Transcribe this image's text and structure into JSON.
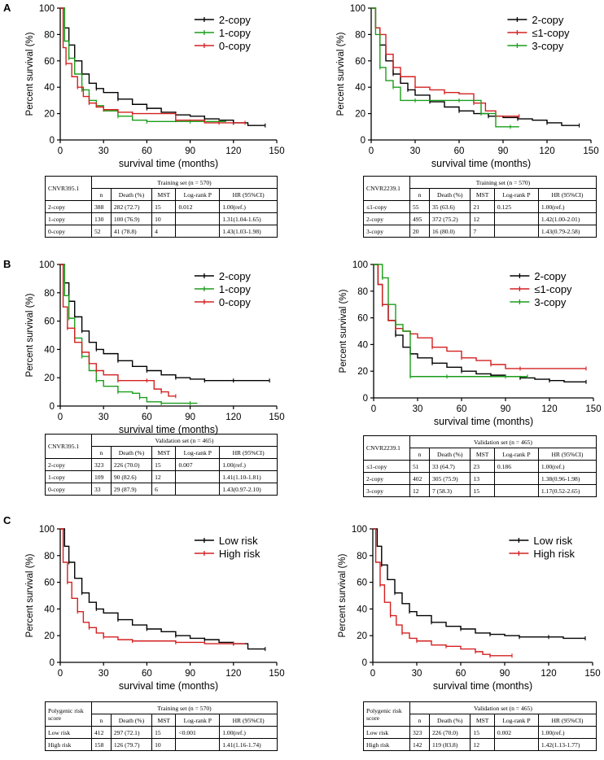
{
  "panel_letters": [
    "A",
    "B",
    "C"
  ],
  "colors": {
    "black": "#000000",
    "green": "#1a9e1a",
    "red": "#d42020"
  },
  "chart_data": [
    {
      "id": "A-left",
      "type": "line",
      "chart_kind": "kaplan-meier",
      "xlabel": "survival time (months)",
      "ylabel": "Percent survival (%)",
      "xlim": [
        0,
        150
      ],
      "ylim": [
        0,
        100
      ],
      "xticks": [
        "0",
        "30",
        "60",
        "90",
        "120",
        "150"
      ],
      "yticks": [
        "0",
        "20",
        "40",
        "60",
        "80",
        "100"
      ],
      "legend": "top-right",
      "series": [
        {
          "name": "2-copy",
          "color": "#000000",
          "x": [
            0,
            3,
            6,
            10,
            15,
            20,
            25,
            30,
            40,
            50,
            60,
            70,
            80,
            90,
            100,
            110,
            120,
            130,
            142
          ],
          "y": [
            100,
            85,
            72,
            60,
            50,
            43,
            39,
            36,
            31,
            27,
            24,
            21,
            19,
            18,
            16,
            15,
            13,
            11,
            11
          ]
        },
        {
          "name": "1-copy",
          "color": "#1a9e1a",
          "x": [
            0,
            3,
            6,
            10,
            15,
            20,
            25,
            30,
            40,
            50,
            60,
            75,
            90,
            100,
            110,
            115
          ],
          "y": [
            100,
            75,
            62,
            50,
            38,
            30,
            26,
            22,
            18,
            15,
            14,
            14,
            14,
            14,
            14,
            14
          ]
        },
        {
          "name": "0-copy",
          "color": "#d42020",
          "x": [
            0,
            2,
            4,
            8,
            12,
            16,
            20,
            25,
            30,
            40,
            50,
            60,
            80,
            100,
            110,
            120,
            128
          ],
          "y": [
            100,
            70,
            58,
            48,
            40,
            33,
            28,
            25,
            23,
            21,
            20,
            20,
            15,
            13,
            13,
            13,
            13
          ]
        }
      ]
    },
    {
      "id": "A-right",
      "type": "line",
      "chart_kind": "kaplan-meier",
      "xlabel": "survival time (months)",
      "ylabel": "Percent survival (%)",
      "xlim": [
        0,
        150
      ],
      "ylim": [
        0,
        100
      ],
      "xticks": [
        "0",
        "30",
        "60",
        "90",
        "120",
        "150"
      ],
      "yticks": [
        "0",
        "20",
        "40",
        "60",
        "80",
        "100"
      ],
      "legend": "top-right",
      "series": [
        {
          "name": "2-copy",
          "color": "#000000",
          "x": [
            0,
            3,
            6,
            10,
            15,
            20,
            25,
            30,
            40,
            50,
            60,
            70,
            80,
            90,
            100,
            110,
            120,
            130,
            142
          ],
          "y": [
            100,
            85,
            72,
            60,
            50,
            43,
            38,
            34,
            29,
            25,
            22,
            20,
            18,
            17,
            16,
            15,
            13,
            11,
            11
          ]
        },
        {
          "name": "≤1-copy",
          "color": "#d42020",
          "x": [
            0,
            3,
            6,
            10,
            15,
            20,
            30,
            40,
            50,
            60,
            70,
            78,
            85,
            95,
            101
          ],
          "y": [
            100,
            85,
            80,
            65,
            55,
            48,
            40,
            38,
            36,
            35,
            28,
            22,
            18,
            18,
            18
          ]
        },
        {
          "name": "3-copy",
          "color": "#1a9e1a",
          "x": [
            0,
            3,
            6,
            10,
            15,
            20,
            30,
            45,
            60,
            65,
            75,
            85,
            95,
            101
          ],
          "y": [
            100,
            80,
            55,
            45,
            40,
            30,
            30,
            30,
            30,
            30,
            20,
            10,
            10,
            10
          ]
        }
      ]
    },
    {
      "id": "B-left",
      "type": "line",
      "chart_kind": "kaplan-meier",
      "xlabel": "survival time (months)",
      "ylabel": "Percent survival (%)",
      "xlim": [
        0,
        150
      ],
      "ylim": [
        0,
        100
      ],
      "xticks": [
        "0",
        "30",
        "60",
        "90",
        "120",
        "150"
      ],
      "yticks": [
        "0",
        "20",
        "40",
        "60",
        "80",
        "100"
      ],
      "legend": "top-right",
      "series": [
        {
          "name": "2-copy",
          "color": "#000000",
          "x": [
            0,
            3,
            6,
            10,
            15,
            20,
            25,
            30,
            40,
            50,
            60,
            70,
            80,
            90,
            100,
            110,
            120,
            130,
            145
          ],
          "y": [
            100,
            87,
            74,
            63,
            53,
            45,
            40,
            37,
            32,
            28,
            25,
            22,
            20,
            19,
            18,
            18,
            18,
            18,
            18
          ]
        },
        {
          "name": "1-copy",
          "color": "#1a9e1a",
          "x": [
            0,
            3,
            6,
            10,
            15,
            20,
            25,
            30,
            40,
            50,
            55,
            60,
            70,
            80,
            90,
            95
          ],
          "y": [
            100,
            78,
            62,
            48,
            35,
            25,
            18,
            14,
            10,
            9,
            6,
            3,
            2,
            2,
            2,
            2
          ]
        },
        {
          "name": "0-copy",
          "color": "#d42020",
          "x": [
            0,
            2,
            5,
            10,
            15,
            20,
            25,
            30,
            40,
            50,
            60,
            65,
            70,
            75,
            80
          ],
          "y": [
            100,
            70,
            55,
            45,
            38,
            30,
            25,
            22,
            18,
            18,
            18,
            12,
            10,
            7,
            7
          ]
        }
      ]
    },
    {
      "id": "B-right",
      "type": "line",
      "chart_kind": "kaplan-meier",
      "xlabel": "survival time (months)",
      "ylabel": "Percent survival (%)",
      "xlim": [
        0,
        150
      ],
      "ylim": [
        0,
        100
      ],
      "xticks": [
        "0",
        "30",
        "60",
        "90",
        "120",
        "150"
      ],
      "yticks": [
        "0",
        "20",
        "40",
        "60",
        "80",
        "100"
      ],
      "legend": "top-right",
      "series": [
        {
          "name": "2-copy",
          "color": "#000000",
          "x": [
            0,
            3,
            6,
            10,
            15,
            20,
            25,
            30,
            40,
            50,
            60,
            70,
            80,
            90,
            100,
            110,
            120,
            130,
            145
          ],
          "y": [
            100,
            85,
            70,
            58,
            47,
            38,
            33,
            30,
            26,
            23,
            20,
            18,
            17,
            16,
            15,
            14,
            13,
            12,
            12
          ]
        },
        {
          "name": "≤1-copy",
          "color": "#d42020",
          "x": [
            0,
            3,
            6,
            10,
            15,
            20,
            25,
            30,
            40,
            50,
            60,
            70,
            80,
            90,
            100,
            120,
            145
          ],
          "y": [
            100,
            85,
            70,
            58,
            52,
            50,
            48,
            45,
            38,
            35,
            30,
            28,
            25,
            22,
            22,
            22,
            22
          ]
        },
        {
          "name": "3-copy",
          "color": "#1a9e1a",
          "x": [
            0,
            3,
            6,
            10,
            15,
            20,
            25,
            30,
            50,
            70,
            90,
            100,
            105
          ],
          "y": [
            100,
            100,
            90,
            70,
            55,
            50,
            16,
            16,
            16,
            16,
            16,
            16,
            16
          ]
        }
      ]
    },
    {
      "id": "C-left",
      "type": "line",
      "chart_kind": "kaplan-meier",
      "xlabel": "survival time (months)",
      "ylabel": "Percent survival (%)",
      "xlim": [
        0,
        150
      ],
      "ylim": [
        0,
        100
      ],
      "xticks": [
        "0",
        "30",
        "60",
        "90",
        "120",
        "150"
      ],
      "yticks": [
        "0",
        "20",
        "40",
        "60",
        "80",
        "100"
      ],
      "legend": "top-right",
      "series": [
        {
          "name": "Low risk",
          "color": "#000000",
          "x": [
            0,
            3,
            6,
            10,
            15,
            20,
            25,
            30,
            40,
            50,
            60,
            70,
            80,
            90,
            100,
            110,
            120,
            130,
            142
          ],
          "y": [
            100,
            87,
            75,
            63,
            52,
            45,
            40,
            37,
            32,
            28,
            25,
            23,
            20,
            18,
            17,
            15,
            14,
            10,
            10
          ]
        },
        {
          "name": "High risk",
          "color": "#d42020",
          "x": [
            0,
            2,
            5,
            8,
            12,
            16,
            20,
            25,
            30,
            40,
            50,
            60,
            80,
            100,
            120,
            128
          ],
          "y": [
            100,
            75,
            60,
            48,
            38,
            30,
            26,
            22,
            19,
            17,
            16,
            16,
            15,
            14,
            14,
            14
          ]
        }
      ]
    },
    {
      "id": "C-right",
      "type": "line",
      "chart_kind": "kaplan-meier",
      "xlabel": "survival time (months)",
      "ylabel": "Percent survival (%)",
      "xlim": [
        0,
        150
      ],
      "ylim": [
        0,
        100
      ],
      "xticks": [
        "0",
        "30",
        "60",
        "90",
        "120",
        "150"
      ],
      "yticks": [
        "0",
        "20",
        "40",
        "60",
        "80",
        "100"
      ],
      "legend": "top-right",
      "series": [
        {
          "name": "Low risk",
          "color": "#000000",
          "x": [
            0,
            3,
            6,
            10,
            15,
            20,
            25,
            30,
            40,
            50,
            60,
            70,
            80,
            90,
            100,
            110,
            120,
            130,
            145
          ],
          "y": [
            100,
            87,
            73,
            62,
            52,
            44,
            38,
            35,
            30,
            27,
            25,
            22,
            21,
            20,
            19,
            19,
            19,
            18,
            18
          ]
        },
        {
          "name": "High risk",
          "color": "#d42020",
          "x": [
            0,
            2,
            5,
            8,
            12,
            16,
            20,
            25,
            30,
            40,
            50,
            60,
            70,
            75,
            80,
            90,
            95
          ],
          "y": [
            100,
            75,
            58,
            45,
            35,
            28,
            22,
            18,
            16,
            13,
            12,
            10,
            8,
            6,
            5,
            5,
            5
          ]
        }
      ]
    }
  ],
  "tables": [
    {
      "id": "A-left",
      "rowname": "CNVR395.1",
      "set_title": "Training set (n = 570)",
      "cols": [
        "n",
        "Death (%)",
        "MST",
        "Log-rank P",
        "HR (95%CI)"
      ],
      "rows": [
        [
          "2-copy",
          "388",
          "282 (72.7)",
          "15",
          "0.012",
          "1.00(ref.)"
        ],
        [
          "1-copy",
          "130",
          "100 (76.9)",
          "10",
          "",
          "1.31(1.04-1.65)"
        ],
        [
          "0-copy",
          "52",
          "41 (78.8)",
          "4",
          "",
          "1.43(1.03-1.98)"
        ]
      ]
    },
    {
      "id": "A-right",
      "rowname": "CNVR2239.1",
      "set_title": "Training set (n = 570)",
      "cols": [
        "n",
        "Death (%)",
        "MST",
        "Log-rank P",
        "HR (95%CI)"
      ],
      "rows": [
        [
          "≤1-copy",
          "55",
          "35 (63.6)",
          "21",
          "0.125",
          "1.00(ref.)"
        ],
        [
          "2-copy",
          "495",
          "372 (75.2)",
          "12",
          "",
          "1.42(1.00-2.01)"
        ],
        [
          "3-copy",
          "20",
          "16 (80.0)",
          "7",
          "",
          "1.43(0.79-2.58)"
        ]
      ]
    },
    {
      "id": "B-left",
      "rowname": "CNVR395.1",
      "set_title": "Validation set (n = 465)",
      "cols": [
        "n",
        "Death (%)",
        "MST",
        "Log-rank P",
        "HR (95%CI)"
      ],
      "rows": [
        [
          "2-copy",
          "323",
          "226 (70.0)",
          "15",
          "0.007",
          "1.00(ref.)"
        ],
        [
          "1-copy",
          "109",
          "90 (82.6)",
          "12",
          "",
          "1.41(1.10-1.81)"
        ],
        [
          "0-copy",
          "33",
          "29 (87.9)",
          "6",
          "",
          "1.43(0.97-2.10)"
        ]
      ]
    },
    {
      "id": "B-right",
      "rowname": "CNVR2239.1",
      "set_title": "Validation set (n = 465)",
      "cols": [
        "n",
        "Death (%)",
        "MST",
        "Log-rank P",
        "HR (95%CI)"
      ],
      "rows": [
        [
          "≤1-copy",
          "51",
          "33 (64.7)",
          "23",
          "0.186",
          "1.00(ref.)"
        ],
        [
          "2-copy",
          "402",
          "305 (75.9)",
          "13",
          "",
          "1.38(0.96-1.98)"
        ],
        [
          "3-copy",
          "12",
          "7 (58.3)",
          "15",
          "",
          "1.17(0.52-2.65)"
        ]
      ]
    },
    {
      "id": "C-left",
      "rowname": "Polygenic risk score",
      "set_title": "Training set (n = 570)",
      "cols": [
        "n",
        "Death (%)",
        "MST",
        "Log-rank P",
        "HR (95%CI)"
      ],
      "rows": [
        [
          "Low risk",
          "412",
          "297 (72.1)",
          "15",
          "<0.001",
          "1.00(ref.)"
        ],
        [
          "High risk",
          "158",
          "126 (79.7)",
          "10",
          "",
          "1.41(1.16-1.74)"
        ]
      ]
    },
    {
      "id": "C-right",
      "rowname": "Polygenic risk score",
      "set_title": "Validation set (n = 465)",
      "cols": [
        "n",
        "Death (%)",
        "MST",
        "Log-rank P",
        "HR (95%CI)"
      ],
      "rows": [
        [
          "Low risk",
          "323",
          "226 (70.0)",
          "15",
          "0.002",
          "1.00(ref.)"
        ],
        [
          "High risk",
          "142",
          "119 (83.8)",
          "12",
          "",
          "1.42(1.13-1.77)"
        ]
      ]
    }
  ]
}
